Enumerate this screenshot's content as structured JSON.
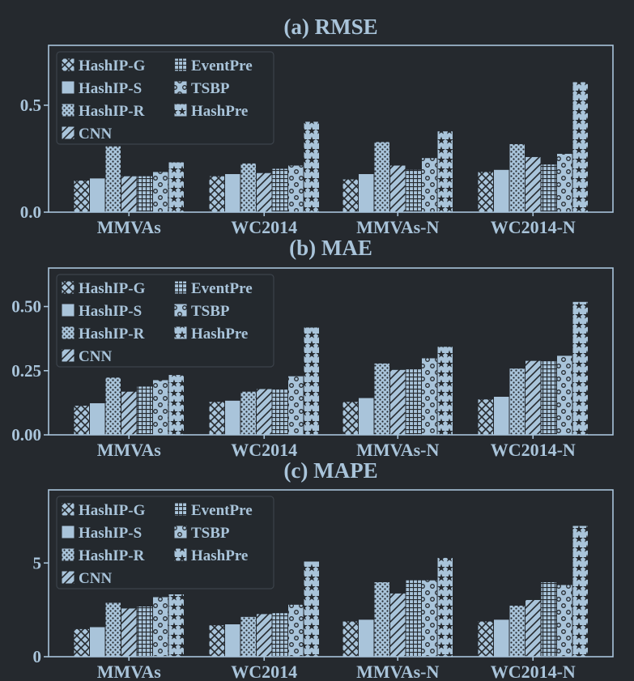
{
  "colors": {
    "background": "#25292e",
    "bar_fill": "#a9c4da",
    "hatch": "#25292e",
    "text": "#a9c4da"
  },
  "series_patterns": [
    "crosshatch",
    "solid",
    "dots-fine",
    "diagonal",
    "grid",
    "circles",
    "stars"
  ],
  "chart_data": [
    {
      "type": "bar",
      "title": "(a) RMSE",
      "categories": [
        "MMVAs",
        "WC2014",
        "MMVAs-N",
        "WC2014-N"
      ],
      "ylim": [
        0,
        0.78
      ],
      "yticks": [
        0.0,
        0.5
      ],
      "ytick_labels": [
        "0.0",
        "0.5"
      ],
      "legend": "top-left",
      "series": [
        {
          "name": "HashIP-G",
          "values": [
            0.15,
            0.17,
            0.155,
            0.19
          ]
        },
        {
          "name": "HashIP-S",
          "values": [
            0.16,
            0.18,
            0.18,
            0.2
          ]
        },
        {
          "name": "HashIP-R",
          "values": [
            0.31,
            0.23,
            0.33,
            0.32
          ]
        },
        {
          "name": "CNN",
          "values": [
            0.17,
            0.185,
            0.22,
            0.26
          ]
        },
        {
          "name": "EventPre",
          "values": [
            0.17,
            0.205,
            0.2,
            0.225
          ]
        },
        {
          "name": "TSBP",
          "values": [
            0.19,
            0.22,
            0.255,
            0.275
          ]
        },
        {
          "name": "HashPre",
          "values": [
            0.235,
            0.425,
            0.38,
            0.61
          ]
        }
      ]
    },
    {
      "type": "bar",
      "title": "(b) MAE",
      "categories": [
        "MMVAs",
        "WC2014",
        "MMVAs-N",
        "WC2014-N"
      ],
      "ylim": [
        0,
        0.65
      ],
      "yticks": [
        0.0,
        0.25,
        0.5
      ],
      "ytick_labels": [
        "0.00",
        "0.25",
        "0.50"
      ],
      "legend": "top-left",
      "series": [
        {
          "name": "HashIP-G",
          "values": [
            0.115,
            0.13,
            0.13,
            0.14
          ]
        },
        {
          "name": "HashIP-S",
          "values": [
            0.125,
            0.135,
            0.145,
            0.15
          ]
        },
        {
          "name": "HashIP-R",
          "values": [
            0.225,
            0.17,
            0.28,
            0.26
          ]
        },
        {
          "name": "CNN",
          "values": [
            0.17,
            0.18,
            0.255,
            0.29
          ]
        },
        {
          "name": "EventPre",
          "values": [
            0.19,
            0.18,
            0.26,
            0.29
          ]
        },
        {
          "name": "TSBP",
          "values": [
            0.215,
            0.23,
            0.3,
            0.31
          ]
        },
        {
          "name": "HashPre",
          "values": [
            0.235,
            0.42,
            0.345,
            0.52
          ]
        }
      ]
    },
    {
      "type": "bar",
      "title": "(c) MAPE",
      "categories": [
        "MMVAs",
        "WC2014",
        "MMVAs-N",
        "WC2014-N"
      ],
      "ylim": [
        0,
        8.9
      ],
      "yticks": [
        0,
        5
      ],
      "ytick_labels": [
        "0",
        "5"
      ],
      "legend": "top-left",
      "series": [
        {
          "name": "HashIP-G",
          "values": [
            1.5,
            1.7,
            1.9,
            1.9
          ]
        },
        {
          "name": "HashIP-S",
          "values": [
            1.6,
            1.75,
            2.0,
            2.0
          ]
        },
        {
          "name": "HashIP-R",
          "values": [
            2.9,
            2.15,
            4.0,
            2.75
          ]
        },
        {
          "name": "CNN",
          "values": [
            2.6,
            2.3,
            3.4,
            3.05
          ]
        },
        {
          "name": "EventPre",
          "values": [
            2.7,
            2.35,
            4.1,
            4.0
          ]
        },
        {
          "name": "TSBP",
          "values": [
            3.2,
            2.8,
            4.1,
            3.85
          ]
        },
        {
          "name": "HashPre",
          "values": [
            3.35,
            5.1,
            5.3,
            7.0
          ]
        }
      ]
    }
  ]
}
